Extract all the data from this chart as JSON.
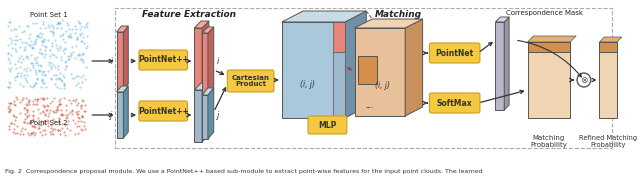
{
  "title": "Fig. 2  Correspondence proposal module. We use a PointNet++ based sub-module to extract point-wise features for the input point clouds. The learned",
  "feature_extraction_label": "Feature Extraction",
  "matching_label": "Matching",
  "correspondence_mask_label": "Correspondence Mask",
  "point_set_1_label": "Point Set 1",
  "point_set_2_label": "Point Set 2",
  "pointnet_label": "PointNet++",
  "pointnet2_label": "PointNet++",
  "cartesian_label": "Cartesian\nProduct",
  "mlp_label": "MLP",
  "pointnet3_label": "PointNet",
  "softmax_label": "SoftMax",
  "matching_prob_label": "Matching\nProbability",
  "refined_label": "Refined Matching\nProbability",
  "i_label": "i",
  "j_label": "j",
  "ij_label": "(i, j)",
  "ij2_label": "(i, j)",
  "background_color": "#ffffff",
  "dashed_box_color": "#aaaaaa",
  "yellow_box_color": "#f5c842",
  "blue_pc_color": "#5ab0e0",
  "red_pc_color": "#cc4422",
  "salmon_feat_color": "#e8857a",
  "salmon_feat_dark": "#c06060",
  "salmon_feat_light": "#f5aba0",
  "blue_feat_color": "#a0b8cc",
  "blue_feat_dark": "#6090a8",
  "blue_feat_light": "#c8dce8",
  "cube_blue_front": "#aac8dc",
  "cube_blue_side": "#7090a8",
  "cube_blue_top": "#c8dce8",
  "cube_blue_face2": "#c8b0a8",
  "cube_orange_front": "#e8c09a",
  "cube_orange_side": "#c8905a",
  "cube_orange_top": "#f0d5b5",
  "mini_orange": "#d4904a",
  "gray_tall_color": "#b8b8c8",
  "gray_tall_dark": "#9898a8",
  "match_box_main": "#f0d5b5",
  "match_box_top": "#d4904a",
  "text_color": "#222222",
  "arrow_color": "#333333"
}
